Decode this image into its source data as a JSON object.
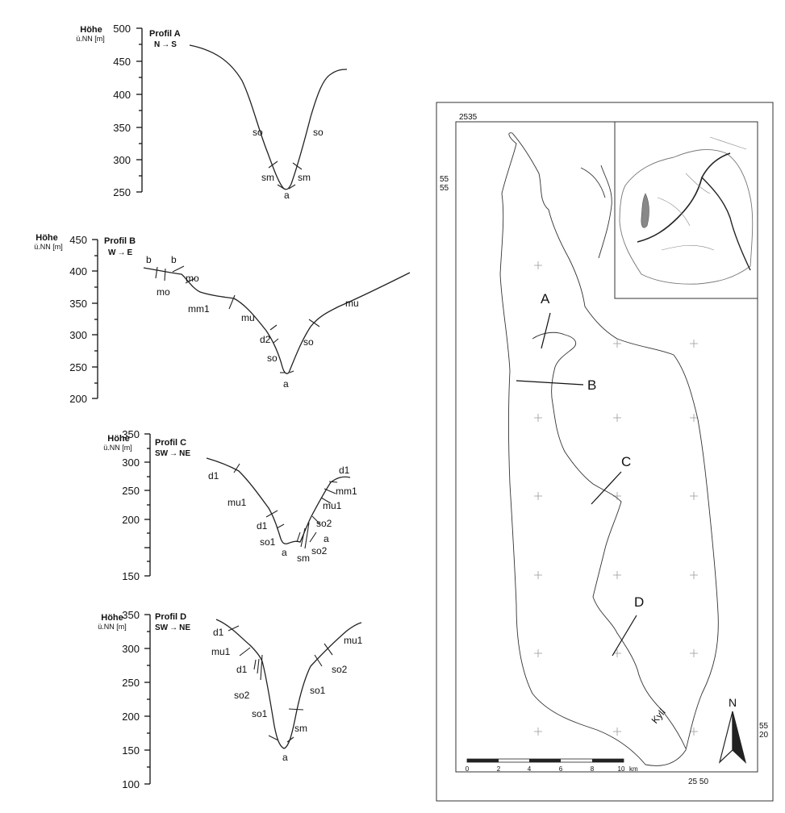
{
  "axis_heading": "Höhe",
  "axis_unit": "ü.NN [m]",
  "arrow": "→",
  "profiles": {
    "A": {
      "title": "Profil A",
      "from": "N",
      "to": "S",
      "ticks": [
        "500",
        "450",
        "400",
        "350",
        "300",
        "250"
      ],
      "labels": [
        "so",
        "so",
        "sm",
        "sm",
        "a"
      ]
    },
    "B": {
      "title": "Profil B",
      "from": "W",
      "to": "E",
      "ticks": [
        "450",
        "400",
        "350",
        "300",
        "250",
        "200"
      ],
      "labels": [
        "b",
        "b",
        "mo",
        "mo",
        "mm1",
        "mu",
        "mu",
        "d2",
        "so",
        "so",
        "a"
      ]
    },
    "C": {
      "title": "Profil C",
      "from": "SW",
      "to": "NE",
      "ticks": [
        "350",
        "300",
        "250",
        "200",
        "150"
      ],
      "labels": [
        "d1",
        "d1",
        "mm1",
        "mu1",
        "mu1",
        "d1",
        "so2",
        "so1",
        "a",
        "so2",
        "a",
        "sm"
      ]
    },
    "D": {
      "title": "Profil D",
      "from": "SW",
      "to": "NE",
      "ticks": [
        "350",
        "300",
        "250",
        "200",
        "150",
        "100"
      ],
      "labels": [
        "d1",
        "mu1",
        "mu1",
        "d1",
        "so2",
        "so2",
        "so1",
        "so1",
        "sm",
        "a"
      ]
    }
  },
  "map": {
    "coord_top": "2535",
    "coord_left_top": "55",
    "coord_left_bottom": "55",
    "coord_right_top": "55",
    "coord_right_bottom": "20",
    "coord_bottom": "25 50",
    "section_labels": [
      "A",
      "B",
      "C",
      "D"
    ],
    "river": "Kyll",
    "north": "N",
    "scale_ticks": [
      "0",
      "2",
      "4",
      "6",
      "8",
      "10"
    ],
    "scale_unit": "km"
  }
}
